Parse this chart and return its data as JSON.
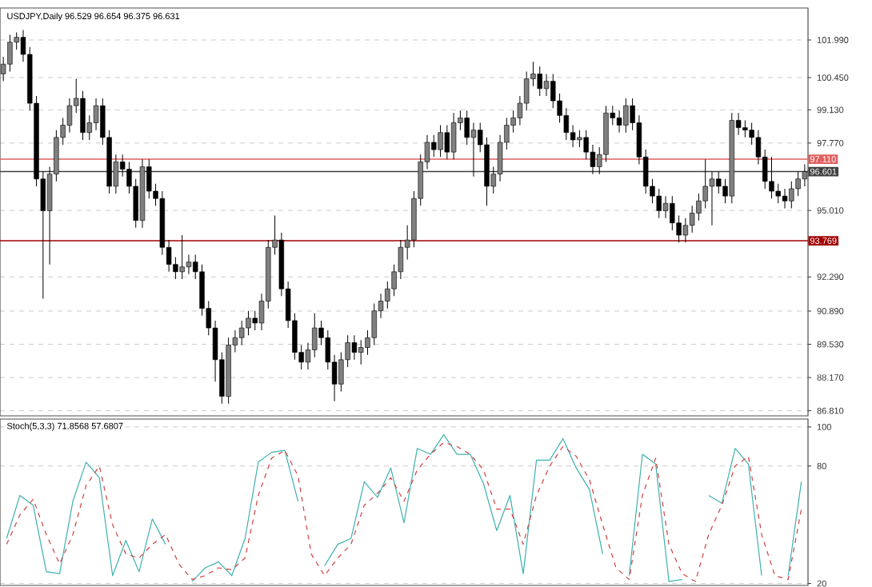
{
  "chart_data": [
    {
      "type": "candlestick",
      "title": "USDJPY,Daily 96.529 96.654 96.375 96.631",
      "color": "#000000",
      "grid": "y",
      "tick_labels": "y",
      "ylim": [
        86.6,
        103.3
      ],
      "yticks": [
        {
          "value": 86.81,
          "label": "86.810"
        },
        {
          "value": 88.17,
          "label": "88.170"
        },
        {
          "value": 89.53,
          "label": "89.530"
        },
        {
          "value": 90.89,
          "label": "90.890"
        },
        {
          "value": 92.29,
          "label": "92.290"
        },
        {
          "value": 95.01,
          "label": "95.010"
        },
        {
          "value": 97.77,
          "label": "97.770"
        },
        {
          "value": 99.13,
          "label": "99.130"
        },
        {
          "value": 100.45,
          "label": "100.450"
        },
        {
          "value": 101.99,
          "label": "101.990"
        }
      ],
      "ref_lines": [
        {
          "axis": "y",
          "value": 97.11,
          "label": "97.110",
          "color": "#e06060"
        },
        {
          "axis": "y",
          "value": 96.601,
          "label": "96.601",
          "color": "#404040"
        },
        {
          "axis": "y",
          "value": 93.769,
          "label": "93.769",
          "color": "#a00000"
        }
      ],
      "categories": [
        null,
        null,
        null,
        null,
        null,
        null,
        null,
        null,
        null,
        null,
        null,
        null,
        null,
        null,
        null,
        null,
        null,
        null,
        null,
        null,
        null,
        null,
        null,
        null,
        null,
        null,
        null,
        null,
        null,
        null,
        null,
        null,
        null,
        null,
        null,
        null,
        null,
        null,
        null,
        null,
        null,
        null,
        null,
        null,
        null,
        null,
        null,
        null,
        null,
        null,
        null,
        null,
        null,
        null,
        null,
        null,
        null,
        null,
        null,
        null,
        null,
        null,
        null,
        null,
        null,
        null,
        null,
        null,
        null,
        null,
        null,
        null,
        null,
        null,
        null,
        null,
        null,
        null,
        null,
        null,
        null,
        null,
        null,
        null,
        null,
        null,
        null,
        null,
        null,
        null,
        null,
        null,
        null,
        null,
        null,
        null,
        null,
        null,
        null,
        null,
        null,
        null,
        null,
        null,
        null,
        null,
        null,
        null,
        null,
        null,
        null,
        null,
        null,
        null,
        null,
        null,
        null,
        null,
        null,
        null,
        null,
        null
      ],
      "ohlc": [
        [
          100.6,
          101.3,
          100.3,
          101.0
        ],
        [
          101.0,
          102.2,
          100.7,
          101.9
        ],
        [
          101.9,
          102.3,
          101.6,
          102.1
        ],
        [
          102.1,
          102.4,
          101.1,
          101.4
        ],
        [
          101.4,
          101.7,
          99.1,
          99.4
        ],
        [
          99.4,
          99.7,
          96.0,
          96.3
        ],
        [
          96.3,
          96.6,
          91.4,
          95.0
        ],
        [
          95.0,
          96.8,
          92.8,
          96.5
        ],
        [
          96.5,
          98.3,
          96.2,
          98.0
        ],
        [
          98.0,
          98.8,
          97.7,
          98.5
        ],
        [
          98.5,
          99.6,
          98.2,
          99.3
        ],
        [
          99.3,
          100.4,
          99.0,
          99.6
        ],
        [
          99.6,
          99.9,
          97.9,
          98.2
        ],
        [
          98.2,
          98.9,
          97.9,
          98.6
        ],
        [
          98.6,
          99.6,
          98.3,
          99.3
        ],
        [
          99.3,
          99.6,
          97.7,
          98.0
        ],
        [
          98.0,
          98.3,
          95.7,
          96.0
        ],
        [
          96.0,
          97.3,
          95.7,
          97.0
        ],
        [
          97.0,
          97.3,
          96.4,
          96.7
        ],
        [
          96.7,
          97.0,
          95.7,
          96.0
        ],
        [
          96.0,
          96.3,
          94.3,
          94.6
        ],
        [
          94.6,
          97.1,
          94.3,
          96.8
        ],
        [
          96.8,
          97.1,
          95.5,
          95.8
        ],
        [
          95.8,
          96.1,
          95.2,
          95.5
        ],
        [
          95.5,
          95.8,
          93.2,
          93.5
        ],
        [
          93.5,
          93.8,
          92.5,
          92.8
        ],
        [
          92.8,
          93.1,
          92.2,
          92.5
        ],
        [
          92.5,
          94.0,
          92.2,
          92.7
        ],
        [
          92.7,
          93.2,
          92.4,
          92.9
        ],
        [
          92.9,
          93.2,
          92.2,
          92.5
        ],
        [
          92.5,
          92.8,
          90.7,
          91.0
        ],
        [
          91.0,
          91.3,
          89.9,
          90.2
        ],
        [
          90.2,
          90.5,
          88.0,
          88.9
        ],
        [
          88.9,
          89.2,
          87.1,
          87.4
        ],
        [
          87.4,
          89.8,
          87.1,
          89.5
        ],
        [
          89.5,
          90.1,
          89.2,
          89.8
        ],
        [
          89.8,
          90.5,
          89.5,
          90.2
        ],
        [
          90.2,
          90.9,
          89.9,
          90.6
        ],
        [
          90.6,
          90.9,
          90.1,
          90.4
        ],
        [
          90.4,
          91.6,
          90.1,
          91.3
        ],
        [
          91.3,
          93.8,
          91.0,
          93.5
        ],
        [
          93.5,
          94.8,
          93.2,
          93.8
        ],
        [
          93.8,
          94.1,
          91.5,
          91.8
        ],
        [
          91.8,
          92.1,
          90.2,
          90.5
        ],
        [
          90.5,
          90.8,
          88.9,
          89.2
        ],
        [
          89.2,
          89.5,
          88.5,
          88.8
        ],
        [
          88.8,
          89.6,
          88.5,
          89.3
        ],
        [
          89.3,
          90.8,
          89.0,
          90.2
        ],
        [
          90.2,
          90.5,
          89.5,
          89.8
        ],
        [
          89.8,
          90.1,
          88.5,
          88.8
        ],
        [
          88.8,
          89.1,
          87.2,
          87.9
        ],
        [
          87.9,
          89.2,
          87.6,
          88.9
        ],
        [
          88.9,
          89.9,
          88.6,
          89.6
        ],
        [
          89.6,
          89.9,
          88.9,
          89.2
        ],
        [
          89.2,
          89.7,
          88.7,
          89.4
        ],
        [
          89.4,
          90.1,
          89.1,
          89.8
        ],
        [
          89.8,
          91.2,
          89.5,
          90.9
        ],
        [
          90.9,
          91.6,
          90.6,
          91.3
        ],
        [
          91.3,
          92.1,
          91.0,
          91.8
        ],
        [
          91.8,
          92.8,
          91.5,
          92.5
        ],
        [
          92.5,
          93.8,
          92.2,
          93.5
        ],
        [
          93.5,
          94.4,
          93.0,
          93.8
        ],
        [
          93.8,
          95.8,
          93.5,
          95.5
        ],
        [
          95.5,
          97.3,
          95.2,
          97.0
        ],
        [
          97.0,
          98.1,
          96.7,
          97.8
        ],
        [
          97.8,
          98.1,
          97.2,
          97.5
        ],
        [
          97.5,
          98.5,
          97.2,
          98.2
        ],
        [
          98.2,
          98.5,
          97.1,
          97.4
        ],
        [
          97.4,
          99.0,
          97.1,
          98.6
        ],
        [
          98.6,
          99.1,
          98.3,
          98.8
        ],
        [
          98.8,
          99.1,
          97.7,
          98.0
        ],
        [
          98.0,
          98.6,
          96.4,
          98.3
        ],
        [
          98.3,
          98.6,
          97.4,
          97.7
        ],
        [
          97.7,
          98.0,
          95.2,
          96.0
        ],
        [
          96.0,
          96.8,
          95.7,
          96.5
        ],
        [
          96.5,
          98.1,
          96.2,
          97.8
        ],
        [
          97.8,
          98.8,
          97.5,
          98.5
        ],
        [
          98.5,
          99.1,
          98.2,
          98.8
        ],
        [
          98.8,
          99.7,
          98.5,
          99.4
        ],
        [
          99.4,
          100.7,
          99.1,
          100.4
        ],
        [
          100.4,
          101.1,
          100.1,
          100.6
        ],
        [
          100.6,
          100.9,
          99.7,
          100.0
        ],
        [
          100.0,
          100.6,
          99.7,
          100.3
        ],
        [
          100.3,
          100.6,
          99.2,
          99.5
        ],
        [
          99.5,
          99.8,
          98.6,
          98.9
        ],
        [
          98.9,
          99.2,
          97.9,
          98.2
        ],
        [
          98.2,
          98.5,
          97.6,
          97.9
        ],
        [
          97.9,
          98.3,
          97.6,
          98.0
        ],
        [
          98.0,
          98.3,
          97.1,
          97.4
        ],
        [
          97.4,
          97.7,
          96.5,
          96.8
        ],
        [
          96.8,
          97.6,
          96.5,
          97.3
        ],
        [
          97.3,
          99.3,
          97.0,
          99.0
        ],
        [
          99.0,
          99.3,
          98.5,
          98.8
        ],
        [
          98.8,
          99.1,
          98.2,
          98.5
        ],
        [
          98.5,
          99.6,
          98.2,
          99.3
        ],
        [
          99.3,
          99.6,
          98.3,
          98.6
        ],
        [
          98.6,
          98.9,
          96.9,
          97.2
        ],
        [
          97.2,
          97.5,
          95.7,
          96.0
        ],
        [
          96.0,
          96.3,
          95.3,
          95.6
        ],
        [
          95.6,
          95.9,
          94.7,
          95.0
        ],
        [
          95.0,
          95.6,
          94.7,
          95.3
        ],
        [
          95.3,
          95.6,
          94.2,
          94.5
        ],
        [
          94.5,
          94.8,
          93.7,
          94.0
        ],
        [
          94.0,
          94.7,
          93.7,
          94.4
        ],
        [
          94.4,
          95.2,
          94.1,
          94.9
        ],
        [
          94.9,
          95.7,
          94.6,
          95.4
        ],
        [
          95.4,
          97.1,
          95.1,
          96.0
        ],
        [
          96.0,
          96.6,
          94.4,
          96.3
        ],
        [
          96.3,
          96.6,
          95.7,
          96.0
        ],
        [
          96.0,
          96.3,
          95.3,
          95.6
        ],
        [
          95.6,
          99.0,
          95.3,
          98.7
        ],
        [
          98.7,
          99.0,
          98.1,
          98.4
        ],
        [
          98.4,
          98.7,
          98.0,
          98.3
        ],
        [
          98.3,
          98.6,
          97.7,
          98.0
        ],
        [
          98.0,
          98.3,
          96.9,
          97.2
        ],
        [
          97.2,
          97.5,
          95.9,
          96.2
        ],
        [
          96.2,
          97.2,
          95.5,
          95.8
        ],
        [
          95.8,
          96.1,
          95.3,
          95.6
        ],
        [
          95.6,
          95.9,
          95.1,
          95.4
        ],
        [
          95.4,
          96.2,
          95.1,
          95.9
        ],
        [
          95.9,
          96.6,
          95.6,
          96.3
        ],
        [
          96.3,
          96.9,
          96.0,
          96.6
        ]
      ]
    },
    {
      "type": "line",
      "title": "Stoch(5,3,3) 71.8568 57.6807",
      "grid": "y",
      "tick_labels": "y",
      "ylim": [
        19,
        104
      ],
      "yticks": [
        20,
        80,
        100
      ],
      "categories": [
        null,
        null,
        null,
        null,
        null,
        null,
        null,
        null,
        null,
        null,
        null,
        null,
        null,
        null,
        null,
        null,
        null,
        null,
        null,
        null,
        null,
        null,
        null,
        null,
        null,
        null,
        null,
        null,
        null,
        null,
        null,
        null,
        null,
        null,
        null,
        null,
        null,
        null,
        null,
        null,
        null,
        null,
        null,
        null,
        null,
        null,
        null,
        null,
        null,
        null,
        null,
        null,
        null,
        null,
        null,
        null,
        null,
        null,
        null,
        null,
        null
      ],
      "series": [
        {
          "color": "#3fb0b0",
          "line_style": "solid",
          "values": [
            43,
            65,
            60,
            26,
            25,
            62,
            82,
            74,
            24,
            42,
            26,
            53,
            40,
            null,
            21,
            28,
            31,
            24,
            43,
            82,
            87,
            88,
            62,
            null,
            29,
            40,
            43,
            72,
            64,
            79,
            51,
            89,
            86,
            96,
            86,
            86,
            71,
            47,
            65,
            25,
            83,
            83,
            94,
            79,
            68,
            35,
            null,
            24,
            86,
            81,
            21,
            22,
            null,
            65,
            61,
            89,
            81,
            24,
            null,
            24,
            72
          ]
        },
        {
          "color": "#d04040",
          "line_style": "dashed",
          "values": [
            40,
            55,
            63,
            45,
            30,
            45,
            70,
            80,
            50,
            35,
            33,
            40,
            45,
            30,
            22,
            24,
            28,
            27,
            33,
            65,
            84,
            88,
            75,
            35,
            24,
            33,
            40,
            60,
            66,
            74,
            62,
            78,
            86,
            92,
            90,
            86,
            78,
            58,
            58,
            40,
            65,
            80,
            90,
            85,
            73,
            50,
            28,
            22,
            65,
            84,
            40,
            25,
            21,
            45,
            60,
            80,
            85,
            45,
            24,
            22,
            58
          ]
        }
      ]
    }
  ]
}
